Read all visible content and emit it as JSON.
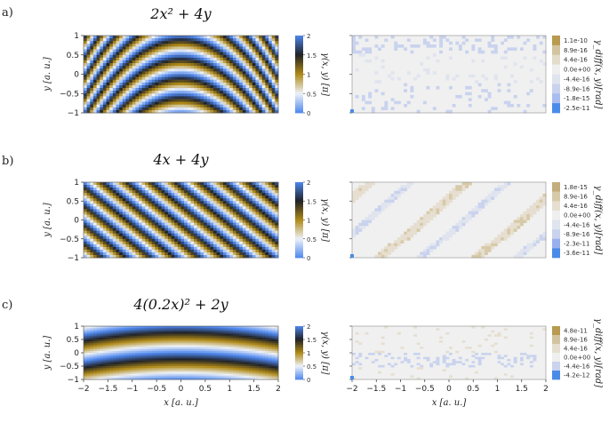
{
  "chart_data": [
    {
      "type": "heatmap",
      "panel": "a)",
      "title": "2x² + 4y",
      "xlabel": "",
      "ylabel": "y [a. u.]",
      "xlim": [
        -2,
        2
      ],
      "ylim": [
        -1,
        1
      ],
      "y_ticks": [
        "1",
        "0.5",
        "0",
        "−0.5",
        "−1"
      ],
      "colorbar_label": "γ(x, y) [π]",
      "colorbar_ticks": [
        "2",
        "1.5",
        "1",
        "0.5",
        "0"
      ],
      "phase_function": {
        "ax2": 2,
        "bx": 0,
        "cy": 4,
        "scale": 1
      },
      "colors": {
        "low": "#4e87ee",
        "light": "#eef2f8",
        "gold": "#b08a17",
        "dark": "#202226"
      }
    },
    {
      "type": "heatmap",
      "panel": "b)",
      "title": "4x + 4y",
      "xlabel": "",
      "ylabel": "y [a. u.]",
      "xlim": [
        -2,
        2
      ],
      "ylim": [
        -1,
        1
      ],
      "y_ticks": [
        "1",
        "0.5",
        "0",
        "−0.5",
        "−1"
      ],
      "colorbar_label": "γ(x, y) [π]",
      "colorbar_ticks": [
        "2",
        "1.5",
        "1",
        "0.5",
        "0"
      ],
      "phase_function": {
        "ax2": 0,
        "bx": 4,
        "cy": 4,
        "scale": 1
      }
    },
    {
      "type": "heatmap",
      "panel": "c)",
      "title": "4(0.2x)² + 2y",
      "xlabel": "x [a. u.]",
      "ylabel": "y [a. u.]",
      "xlim": [
        -2,
        2
      ],
      "ylim": [
        -1,
        1
      ],
      "x_ticks": [
        "−2",
        "−1.5",
        "−1",
        "−0.5",
        "0",
        "0.5",
        "1",
        "1.5",
        "2"
      ],
      "y_ticks": [
        "1",
        "0.5",
        "0",
        "−0.5",
        "−1"
      ],
      "colorbar_label": "γ(x, y) [π]",
      "colorbar_ticks": [
        "2",
        "1.5",
        "1",
        "0.5",
        "0"
      ],
      "phase_function": {
        "ax2": 0.16,
        "bx": 0,
        "cy": 2,
        "scale": 1
      }
    },
    {
      "type": "heatmap",
      "panel": "a) diff",
      "colorbar_label": "γ_diff(x, y)[rad]",
      "legend_values": [
        "1.1e-10",
        "8.9e-16",
        "4.4e-16",
        "0.0e+00",
        "-4.4e-16",
        "-8.9e-16",
        "-1.8e-15",
        "-2.5e-11"
      ],
      "legend_colors": [
        "#b89a50",
        "#d3c4a0",
        "#e4dccb",
        "#efefef",
        "#e0e4ee",
        "#c9d3ee",
        "#a9bdf0",
        "#4a8be8"
      ]
    },
    {
      "type": "heatmap",
      "panel": "b) diff",
      "colorbar_label": "γ_diff(x, y)[rad]",
      "legend_values": [
        "1.8e-15",
        "8.9e-16",
        "4.4e-16",
        "0.0e+00",
        "-4.4e-16",
        "-8.9e-16",
        "-2.3e-11",
        "-3.6e-11"
      ],
      "legend_colors": [
        "#c4ad7c",
        "#d7caa8",
        "#e6ded0",
        "#efefef",
        "#e0e4ee",
        "#c9d3ee",
        "#98b0ee",
        "#4a8be8"
      ]
    },
    {
      "type": "heatmap",
      "panel": "c) diff",
      "xlabel": "x [a. u.]",
      "x_ticks": [
        "−2",
        "−1.5",
        "−1",
        "−0.5",
        "0",
        "0.5",
        "1",
        "1.5",
        "2"
      ],
      "colorbar_label": "γ_diff(x, y)[rad]",
      "legend_values": [
        "4.8e-11",
        "8.9e-16",
        "4.4e-16",
        "0.0e+00",
        "-4.4e-16",
        "-4.2e-12"
      ],
      "legend_colors": [
        "#b89a50",
        "#d3c4a0",
        "#e6ded0",
        "#efefef",
        "#c9d3ee",
        "#4a8be8"
      ]
    }
  ]
}
